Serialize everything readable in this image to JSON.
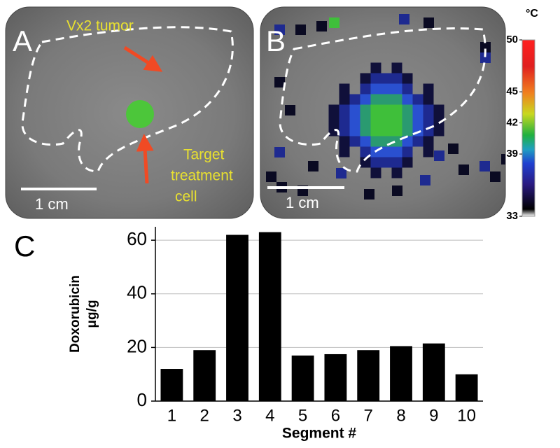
{
  "panels": {
    "a": {
      "letter": "A",
      "tumor_label": "Vx2 tumor",
      "target_label": [
        "Target",
        "treatment",
        "cell"
      ],
      "scale_label": "1 cm"
    },
    "b": {
      "letter": "B",
      "scale_label": "1 cm"
    },
    "colorbar": {
      "title": "°C",
      "lim": [
        33,
        50
      ],
      "ticks": [
        33,
        39,
        42,
        45,
        50
      ]
    }
  },
  "chart_data": {
    "type": "bar",
    "letter": "C",
    "ylabel": [
      "Doxorubicin",
      "μg/g"
    ],
    "xlabel": "Segment #",
    "categories": [
      "1",
      "2",
      "3",
      "4",
      "5",
      "6",
      "7",
      "8",
      "9",
      "10"
    ],
    "values": [
      12,
      19,
      62,
      63,
      17,
      17.5,
      19,
      20.5,
      21.5,
      10
    ],
    "color": "#000000",
    "ylim": [
      0,
      65
    ],
    "yticks": [
      0,
      20,
      40,
      60
    ],
    "grid": true
  }
}
